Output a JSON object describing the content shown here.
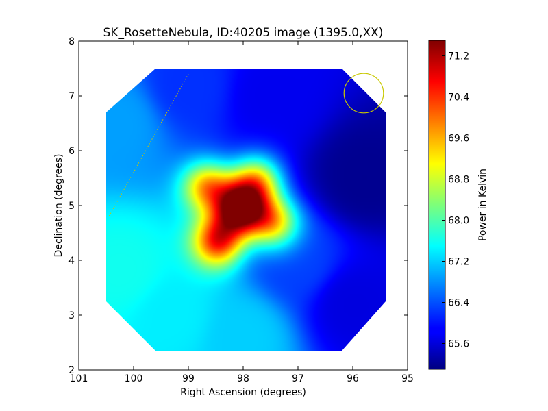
{
  "chart_data": {
    "type": "heatmap",
    "title": "SK_RosetteNebula, ID:40205 image (1395.0,XX)",
    "xlabel": "Right Ascension (degrees)",
    "ylabel": "Declination (degrees)",
    "xlim": [
      101,
      95
    ],
    "ylim": [
      2,
      8
    ],
    "x_inverted": true,
    "xticks": [
      101,
      100,
      99,
      98,
      97,
      96,
      95
    ],
    "yticks": [
      2,
      3,
      4,
      5,
      6,
      7,
      8
    ],
    "colormap": "jet",
    "colorbar": {
      "label": "Power in Kelvin",
      "range": [
        65.1,
        71.5
      ],
      "ticks": [
        "65.6",
        "66.4",
        "67.2",
        "68.0",
        "68.8",
        "69.6",
        "70.4",
        "71.2"
      ]
    },
    "map_footprint_corners": [
      [
        99.6,
        7.5
      ],
      [
        96.2,
        7.5
      ],
      [
        95.4,
        6.7
      ],
      [
        95.4,
        3.25
      ],
      [
        96.2,
        2.35
      ],
      [
        99.6,
        2.35
      ],
      [
        100.5,
        3.25
      ],
      [
        100.5,
        6.7
      ]
    ],
    "background_field": {
      "description_values": "gradient of power levels across the map",
      "anchors": [
        {
          "ra": 100.2,
          "dec": 3.8,
          "value": 67.6
        },
        {
          "ra": 100.3,
          "dec": 6.5,
          "value": 66.9
        },
        {
          "ra": 99.0,
          "dec": 7.2,
          "value": 66.2
        },
        {
          "ra": 97.5,
          "dec": 7.0,
          "value": 65.8
        },
        {
          "ra": 95.8,
          "dec": 5.5,
          "value": 65.2
        },
        {
          "ra": 96.0,
          "dec": 3.2,
          "value": 65.7
        },
        {
          "ra": 98.0,
          "dec": 2.6,
          "value": 67.2
        },
        {
          "ra": 99.3,
          "dec": 3.0,
          "value": 67.4
        },
        {
          "ra": 97.0,
          "dec": 4.0,
          "value": 66.3
        }
      ]
    },
    "sources": [
      {
        "ra": 98.05,
        "dec": 4.95,
        "amplitude": 5.0
      },
      {
        "ra": 98.45,
        "dec": 4.35,
        "amplitude": 3.6
      },
      {
        "ra": 98.65,
        "dec": 5.35,
        "amplitude": 3.0
      },
      {
        "ra": 97.75,
        "dec": 5.45,
        "amplitude": 3.0
      },
      {
        "ra": 97.45,
        "dec": 4.7,
        "amplitude": 2.9
      }
    ],
    "beam_circle": {
      "ra": 95.8,
      "dec": 7.05,
      "radius_deg": 0.36,
      "color": "#c8c800"
    },
    "dotted_track": {
      "from": [
        99.0,
        7.4
      ],
      "to": [
        100.45,
        4.8
      ],
      "color": "#c8c800"
    }
  }
}
